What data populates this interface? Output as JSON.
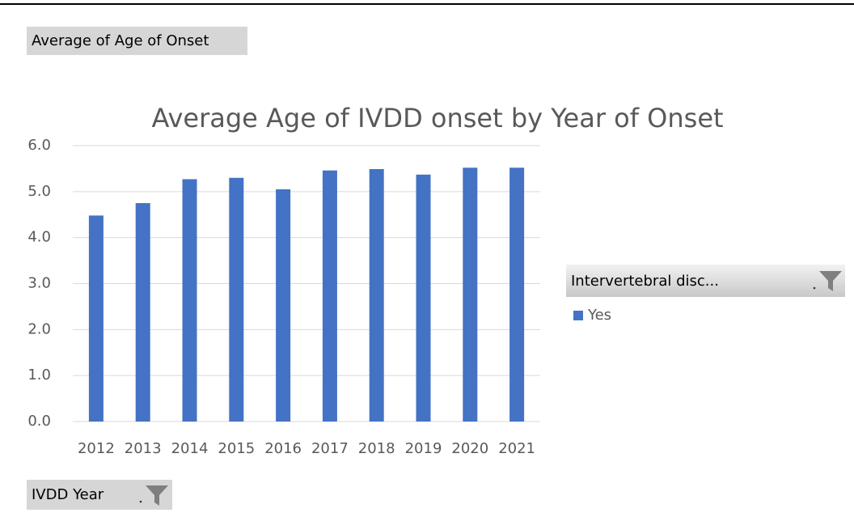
{
  "chart_data": {
    "type": "bar",
    "title": "Average Age of IVDD onset by Year of Onset",
    "value_field": "Average of Age of Onset",
    "axis_field": "IVDD Year",
    "legend_title": "Intervertebral disc...",
    "categories": [
      "2012",
      "2013",
      "2014",
      "2015",
      "2016",
      "2017",
      "2018",
      "2019",
      "2020",
      "2021"
    ],
    "series": [
      {
        "name": "Yes",
        "color": "#4472c4",
        "values": [
          4.48,
          4.75,
          5.27,
          5.3,
          5.05,
          5.46,
          5.49,
          5.37,
          5.52,
          5.52
        ]
      }
    ],
    "ylim": [
      0,
      6
    ],
    "yticks": [
      {
        "value": 0,
        "label": "0.0"
      },
      {
        "value": 1,
        "label": "1.0"
      },
      {
        "value": 2,
        "label": "2.0"
      },
      {
        "value": 3,
        "label": "3.0"
      },
      {
        "value": 4,
        "label": "4.0"
      },
      {
        "value": 5,
        "label": "5.0"
      },
      {
        "value": 6,
        "label": "6.0"
      }
    ],
    "grid": true,
    "legend": "right"
  }
}
